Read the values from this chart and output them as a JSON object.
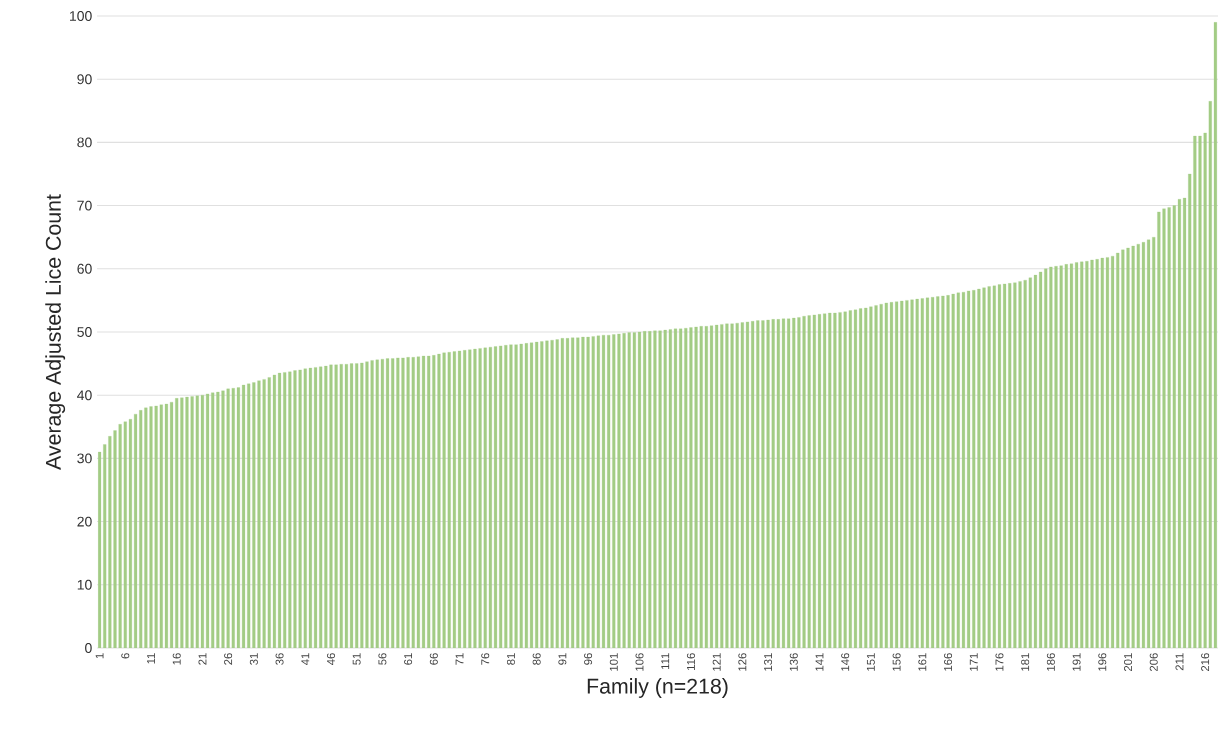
{
  "chart_data": {
    "type": "bar",
    "xlabel": "Family (n=218)",
    "ylabel": "Average Adjusted Lice Count",
    "color": "#a3cc85",
    "ylim": [
      0,
      100
    ],
    "yticks": [
      0,
      10,
      20,
      30,
      40,
      50,
      60,
      70,
      80,
      90,
      100
    ],
    "grid": "y",
    "categories": [
      "1",
      null,
      null,
      null,
      null,
      "6",
      null,
      null,
      null,
      null,
      "11",
      null,
      null,
      null,
      null,
      "16",
      null,
      null,
      null,
      null,
      "21",
      null,
      null,
      null,
      null,
      "26",
      null,
      null,
      null,
      null,
      "31",
      null,
      null,
      null,
      null,
      "36",
      null,
      null,
      null,
      null,
      "41",
      null,
      null,
      null,
      null,
      "46",
      null,
      null,
      null,
      null,
      "51",
      null,
      null,
      null,
      null,
      "56",
      null,
      null,
      null,
      null,
      "61",
      null,
      null,
      null,
      null,
      "66",
      null,
      null,
      null,
      null,
      "71",
      null,
      null,
      null,
      null,
      "76",
      null,
      null,
      null,
      null,
      "81",
      null,
      null,
      null,
      null,
      "86",
      null,
      null,
      null,
      null,
      "91",
      null,
      null,
      null,
      null,
      "96",
      null,
      null,
      null,
      null,
      "101",
      null,
      null,
      null,
      null,
      "106",
      null,
      null,
      null,
      null,
      "111",
      null,
      null,
      null,
      null,
      "116",
      null,
      null,
      null,
      null,
      "121",
      null,
      null,
      null,
      null,
      "126",
      null,
      null,
      null,
      null,
      "131",
      null,
      null,
      null,
      null,
      "136",
      null,
      null,
      null,
      null,
      "141",
      null,
      null,
      null,
      null,
      "146",
      null,
      null,
      null,
      null,
      "151",
      null,
      null,
      null,
      null,
      "156",
      null,
      null,
      null,
      null,
      "161",
      null,
      null,
      null,
      null,
      "166",
      null,
      null,
      null,
      null,
      "171",
      null,
      null,
      null,
      null,
      "176",
      null,
      null,
      null,
      null,
      "181",
      null,
      null,
      null,
      null,
      "186",
      null,
      null,
      null,
      null,
      "191",
      null,
      null,
      null,
      null,
      "196",
      null,
      null,
      null,
      null,
      "201",
      null,
      null,
      null,
      null,
      "206",
      null,
      null,
      null,
      null,
      "211",
      null,
      null,
      null,
      null,
      "216",
      null,
      null
    ],
    "values": [
      31.0,
      32.2,
      33.5,
      34.4,
      35.4,
      35.8,
      36.2,
      37.0,
      37.6,
      38.0,
      38.2,
      38.3,
      38.5,
      38.6,
      38.9,
      39.5,
      39.6,
      39.7,
      39.8,
      39.9,
      40.0,
      40.2,
      40.4,
      40.5,
      40.7,
      41.0,
      41.1,
      41.2,
      41.6,
      41.8,
      42.0,
      42.3,
      42.5,
      42.8,
      43.2,
      43.5,
      43.6,
      43.7,
      43.9,
      44.0,
      44.2,
      44.3,
      44.4,
      44.5,
      44.6,
      44.8,
      44.8,
      44.9,
      44.9,
      45.0,
      45.0,
      45.1,
      45.3,
      45.5,
      45.6,
      45.7,
      45.8,
      45.8,
      45.9,
      45.9,
      46.0,
      46.0,
      46.1,
      46.2,
      46.2,
      46.3,
      46.5,
      46.7,
      46.8,
      46.9,
      47.0,
      47.1,
      47.2,
      47.3,
      47.4,
      47.5,
      47.6,
      47.7,
      47.8,
      47.9,
      48.0,
      48.0,
      48.1,
      48.2,
      48.3,
      48.4,
      48.5,
      48.6,
      48.7,
      48.8,
      49.0,
      49.0,
      49.1,
      49.1,
      49.2,
      49.2,
      49.3,
      49.4,
      49.5,
      49.5,
      49.6,
      49.7,
      49.8,
      49.9,
      49.9,
      50.0,
      50.1,
      50.1,
      50.2,
      50.2,
      50.3,
      50.4,
      50.5,
      50.5,
      50.6,
      50.7,
      50.8,
      50.9,
      50.9,
      51.0,
      51.1,
      51.2,
      51.3,
      51.3,
      51.4,
      51.5,
      51.6,
      51.7,
      51.8,
      51.8,
      51.9,
      52.0,
      52.0,
      52.1,
      52.1,
      52.2,
      52.3,
      52.5,
      52.6,
      52.7,
      52.8,
      52.9,
      53.0,
      53.0,
      53.1,
      53.2,
      53.4,
      53.5,
      53.7,
      53.8,
      54.0,
      54.2,
      54.4,
      54.6,
      54.7,
      54.8,
      54.9,
      55.0,
      55.1,
      55.2,
      55.3,
      55.4,
      55.5,
      55.6,
      55.7,
      55.8,
      56.0,
      56.2,
      56.3,
      56.5,
      56.6,
      56.8,
      57.0,
      57.2,
      57.3,
      57.5,
      57.6,
      57.7,
      57.8,
      58.0,
      58.2,
      58.6,
      59.0,
      59.5,
      60.0,
      60.3,
      60.4,
      60.5,
      60.7,
      60.8,
      61.0,
      61.1,
      61.2,
      61.4,
      61.5,
      61.7,
      61.8,
      62.0,
      62.5,
      63.0,
      63.3,
      63.6,
      63.9,
      64.2,
      64.6,
      65.0,
      69.0,
      69.5,
      69.7,
      70.0,
      71.0,
      71.2,
      75.0,
      81.0,
      81.0,
      81.5,
      86.5,
      99.0
    ]
  }
}
